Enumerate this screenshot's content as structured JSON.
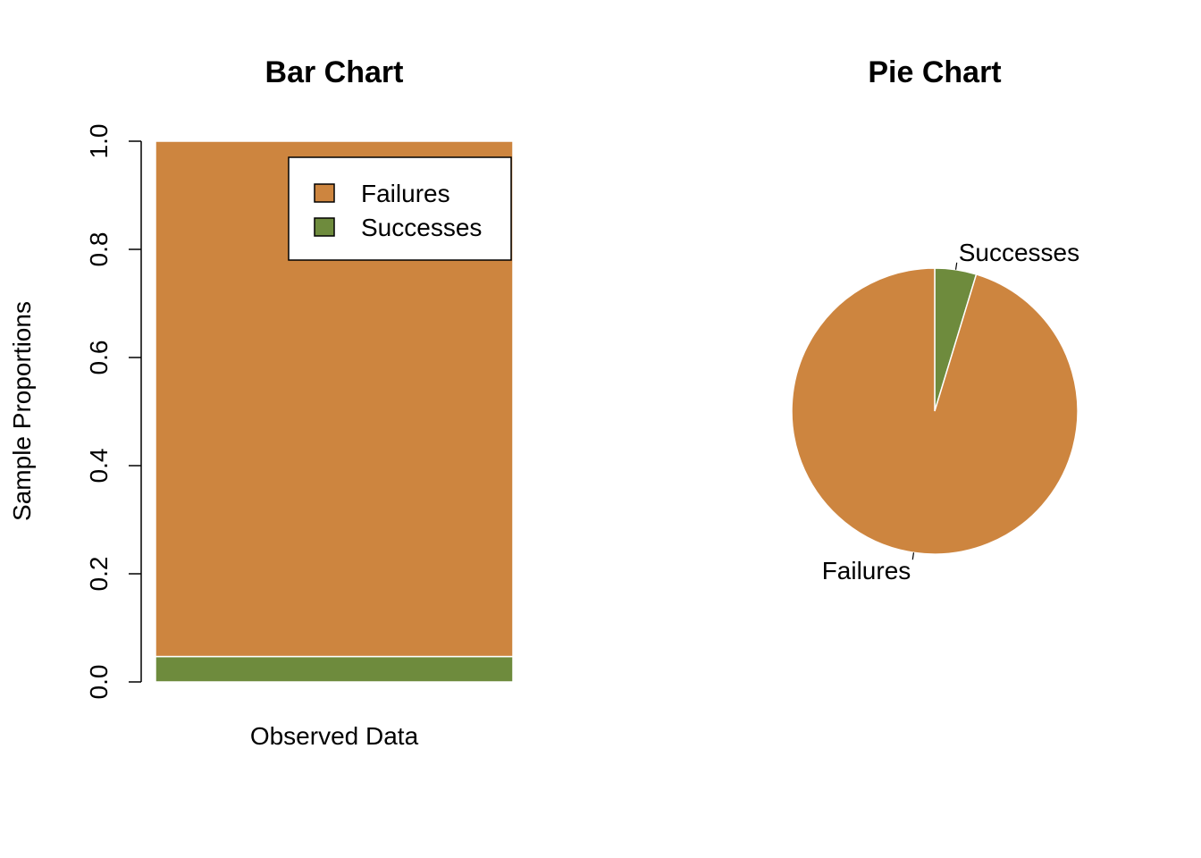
{
  "chart_data": [
    {
      "type": "bar",
      "title": "Bar Chart",
      "xlabel": "",
      "ylabel": "Sample Proportions",
      "categories": [
        "Observed Data"
      ],
      "stacked": true,
      "series": [
        {
          "name": "Successes",
          "values": [
            0.047
          ],
          "color": "#6e8b3d"
        },
        {
          "name": "Failures",
          "values": [
            0.953
          ],
          "color": "#cd853f"
        }
      ],
      "ylim": [
        0,
        1
      ],
      "yticks": [
        "0.0",
        "0.2",
        "0.4",
        "0.6",
        "0.8",
        "1.0"
      ],
      "legend": {
        "placement": "top-right",
        "entries": [
          {
            "label": "Failures",
            "color": "#cd853f"
          },
          {
            "label": "Successes",
            "color": "#6e8b3d"
          }
        ]
      },
      "grid": false
    },
    {
      "type": "pie",
      "title": "Pie Chart",
      "slices": [
        {
          "label": "Successes",
          "value": 0.047,
          "color": "#6e8b3d"
        },
        {
          "label": "Failures",
          "value": 0.953,
          "color": "#cd853f"
        }
      ]
    }
  ]
}
